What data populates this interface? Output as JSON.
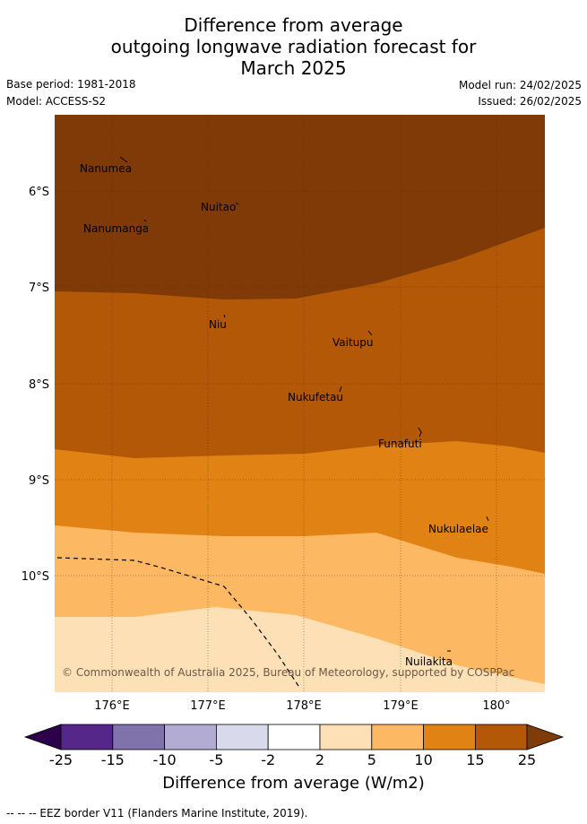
{
  "title": {
    "line1": "Difference from average",
    "line2": "outgoing longwave radiation forecast for",
    "line3": "March 2025"
  },
  "meta": {
    "base_period": "Base period: 1981-2018",
    "model": "Model: ACCESS-S2",
    "model_run": "Model run: 24/02/2025",
    "issued": "Issued: 26/02/2025"
  },
  "map": {
    "lat_labels": [
      "6°S",
      "7°S",
      "8°S",
      "9°S",
      "10°S"
    ],
    "lon_labels": [
      "176°E",
      "177°E",
      "178°E",
      "179°E",
      "180°"
    ],
    "places": [
      "Nanumea",
      "Nuitao",
      "Nanumanga",
      "Niu",
      "Vaitupu",
      "Nukufetau",
      "Funafuti",
      "Nukulaelae",
      "Nuilakita"
    ],
    "copyright": "© Commonwealth of Australia 2025, Bureau of Meteorology, supported by COSPPac",
    "band_colors": {
      "c15_25": "#7f3a07",
      "c10_15": "#b35806",
      "c5_10": "#e08214",
      "c2_5": "#fdb863",
      "c-2_2": "#fee0b6"
    }
  },
  "colorbar": {
    "ticks": [
      "-25",
      "-15",
      "-10",
      "-5",
      "-2",
      "2",
      "5",
      "10",
      "15",
      "25"
    ],
    "colors": [
      "#2d004b",
      "#542788",
      "#8073ac",
      "#b2abd2",
      "#d8daeb",
      "#ffffff",
      "#fee0b6",
      "#fdb863",
      "#e08214",
      "#b35806",
      "#7f3b08"
    ],
    "title": "Difference from average (W/m2)"
  },
  "footnote": "--  --  -- EEZ border V11 (Flanders Marine Institute, 2019)."
}
